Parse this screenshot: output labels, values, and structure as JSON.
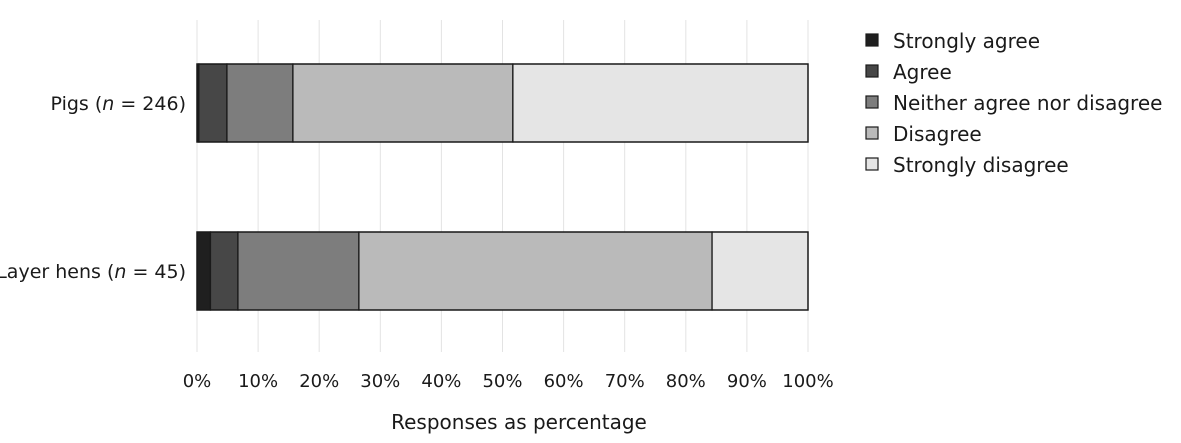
{
  "chart_data": {
    "type": "bar",
    "orientation": "horizontal",
    "stacked": true,
    "categories": [
      {
        "label": "Pigs (",
        "n_symbol": "n",
        "n_text": " = 246)"
      },
      {
        "label": "Layer hens (",
        "n_symbol": "n",
        "n_text": " = 45)"
      }
    ],
    "series": [
      {
        "name": "Strongly agree",
        "color": "#1f1f1f",
        "values": [
          0.3,
          2.2
        ]
      },
      {
        "name": "Agree",
        "color": "#474747",
        "values": [
          4.6,
          4.5
        ]
      },
      {
        "name": "Neither agree nor disagree",
        "color": "#7d7d7d",
        "values": [
          10.8,
          19.8
        ]
      },
      {
        "name": "Disagree",
        "color": "#bababa",
        "values": [
          36.0,
          57.8
        ]
      },
      {
        "name": "Strongly disagree",
        "color": "#e5e5e5",
        "values": [
          48.3,
          15.7
        ]
      }
    ],
    "xticks": [
      "0%",
      "10%",
      "20%",
      "30%",
      "40%",
      "50%",
      "60%",
      "70%",
      "80%",
      "90%",
      "100%"
    ],
    "xlim": [
      0,
      100
    ],
    "xlabel": "Responses as percentage",
    "grid": "vertical",
    "legend_position": "right"
  }
}
